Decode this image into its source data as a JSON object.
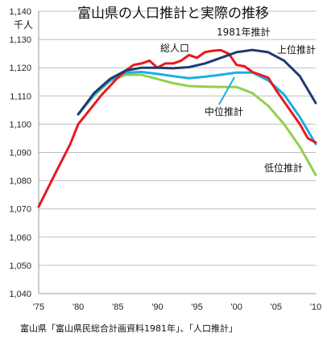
{
  "chart_data": {
    "type": "line",
    "title": "富山県の人口推計と実際の推移",
    "ylabel": "千人",
    "xlabel": "",
    "source": "富山県「富山県民総合計画資料1981年」、「人口推計」",
    "xlim": [
      1975,
      2010
    ],
    "ylim": [
      1040,
      1140
    ],
    "x_ticks": [
      1975,
      1980,
      1985,
      1990,
      1995,
      2000,
      2005,
      2010
    ],
    "x_tick_labels": [
      "'75",
      "'80",
      "'85",
      "'90",
      "'95",
      "'00",
      "'05",
      "'10"
    ],
    "y_ticks": [
      1040,
      1050,
      1060,
      1070,
      1080,
      1090,
      1100,
      1110,
      1120,
      1130,
      1140
    ],
    "y_tick_labels": [
      "1,040",
      "1,050",
      "1,060",
      "1,070",
      "1,080",
      "1,090",
      "1,100",
      "1,110",
      "1,120",
      "1,130",
      "1,140"
    ],
    "grid": true,
    "annotations": {
      "projection_year": "1981年推計",
      "total": "総人口",
      "high": "上位推計",
      "mid": "中位推計",
      "low": "低位推計"
    },
    "series": [
      {
        "name": "総人口",
        "color": "#e8191e",
        "points": [
          [
            1975,
            1070.8
          ],
          [
            1977,
            1082
          ],
          [
            1979,
            1093
          ],
          [
            1980,
            1100
          ],
          [
            1981,
            1103.5
          ],
          [
            1982,
            1107
          ],
          [
            1983,
            1110.5
          ],
          [
            1984,
            1113.5
          ],
          [
            1985,
            1116.5
          ],
          [
            1986,
            1119
          ],
          [
            1987,
            1121
          ],
          [
            1988,
            1121.5
          ],
          [
            1989,
            1122.5
          ],
          [
            1990,
            1120
          ],
          [
            1991,
            1121.5
          ],
          [
            1992,
            1121.5
          ],
          [
            1993,
            1122.5
          ],
          [
            1994,
            1124.5
          ],
          [
            1995,
            1123.5
          ],
          [
            1996,
            1125.5
          ],
          [
            1997,
            1126
          ],
          [
            1998,
            1126.2
          ],
          [
            1999,
            1125
          ],
          [
            2000,
            1121
          ],
          [
            2001,
            1120.5
          ],
          [
            2002,
            1118.5
          ],
          [
            2003,
            1117.5
          ],
          [
            2004,
            1116.5
          ],
          [
            2005,
            1112
          ],
          [
            2006,
            1108
          ],
          [
            2007,
            1104
          ],
          [
            2008,
            1100
          ],
          [
            2009,
            1095
          ],
          [
            2010,
            1093.5
          ]
        ]
      },
      {
        "name": "上位推計",
        "color": "#1f3b73",
        "points": [
          [
            1980,
            1103.5
          ],
          [
            1982,
            1111
          ],
          [
            1984,
            1116
          ],
          [
            1986,
            1119
          ],
          [
            1988,
            1120
          ],
          [
            1990,
            1120
          ],
          [
            1992,
            1119.8
          ],
          [
            1994,
            1120.2
          ],
          [
            1996,
            1121.5
          ],
          [
            1998,
            1123.5
          ],
          [
            2000,
            1125.5
          ],
          [
            2002,
            1126.3
          ],
          [
            2004,
            1125.5
          ],
          [
            2006,
            1122.5
          ],
          [
            2008,
            1117
          ],
          [
            2010,
            1107.5
          ]
        ]
      },
      {
        "name": "中位推計",
        "color": "#1aaee8",
        "points": [
          [
            1980,
            1103.5
          ],
          [
            1982,
            1110.5
          ],
          [
            1984,
            1115.5
          ],
          [
            1986,
            1118.3
          ],
          [
            1988,
            1118.5
          ],
          [
            1990,
            1117.8
          ],
          [
            1992,
            1117
          ],
          [
            1994,
            1116.3
          ],
          [
            1996,
            1116.8
          ],
          [
            1998,
            1117.5
          ],
          [
            2000,
            1118.3
          ],
          [
            2002,
            1118.3
          ],
          [
            2004,
            1115.5
          ],
          [
            2006,
            1110.5
          ],
          [
            2008,
            1102.5
          ],
          [
            2010,
            1093
          ]
        ]
      },
      {
        "name": "低位推計",
        "color": "#92d050",
        "points": [
          [
            1980,
            1103.5
          ],
          [
            1982,
            1110.2
          ],
          [
            1984,
            1115.2
          ],
          [
            1986,
            1117.5
          ],
          [
            1988,
            1117.5
          ],
          [
            1990,
            1116
          ],
          [
            1992,
            1114.5
          ],
          [
            1994,
            1113.5
          ],
          [
            1996,
            1113.3
          ],
          [
            1998,
            1113.2
          ],
          [
            2000,
            1113.2
          ],
          [
            2002,
            1111
          ],
          [
            2004,
            1106.5
          ],
          [
            2006,
            1100
          ],
          [
            2008,
            1092
          ],
          [
            2010,
            1082
          ]
        ]
      }
    ]
  }
}
